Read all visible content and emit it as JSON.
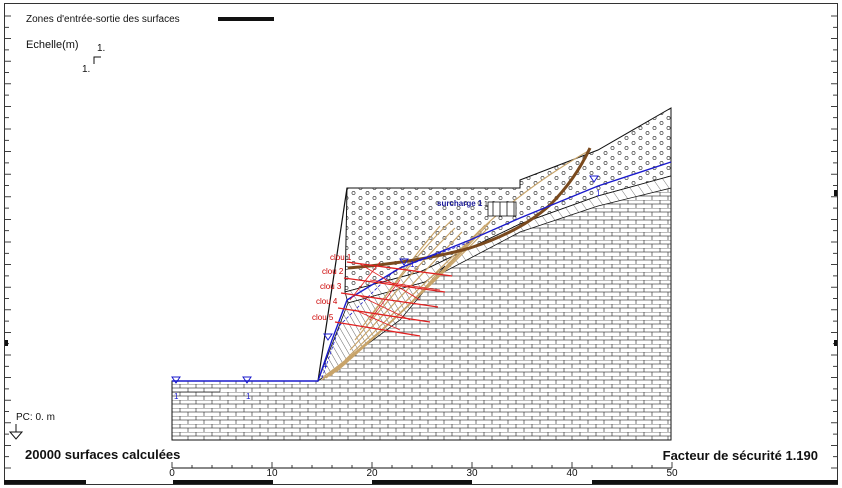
{
  "legend": {
    "title": "Zones d'entrée-sortie des surfaces"
  },
  "scale": {
    "label": "Echelle(m)",
    "h_value": "1.",
    "v_value": "1."
  },
  "surcharge": {
    "label": "surcharge 1",
    "value": "1"
  },
  "nails": [
    {
      "label": "clou 1"
    },
    {
      "label": "clou 2"
    },
    {
      "label": "clou 3"
    },
    {
      "label": "clou 4"
    },
    {
      "label": "clou 5"
    }
  ],
  "pc": {
    "label": "PC: 0. m"
  },
  "footer": {
    "surfaces": "20000 surfaces calculées",
    "factor": "Facteur de sécurité 1.190"
  },
  "x_axis": {
    "ticks": [
      "0",
      "10",
      "20",
      "30",
      "40",
      "50"
    ]
  },
  "water_markers": [
    "1",
    "1",
    "1",
    "1",
    "1"
  ],
  "colors": {
    "nail": "#e02020",
    "nail_label": "#cc0000",
    "water": "#1a1acc",
    "critical_surface": "#7a4a1e",
    "surfaces": "#c8a46a",
    "surcharge_label": "#1a1a99"
  }
}
